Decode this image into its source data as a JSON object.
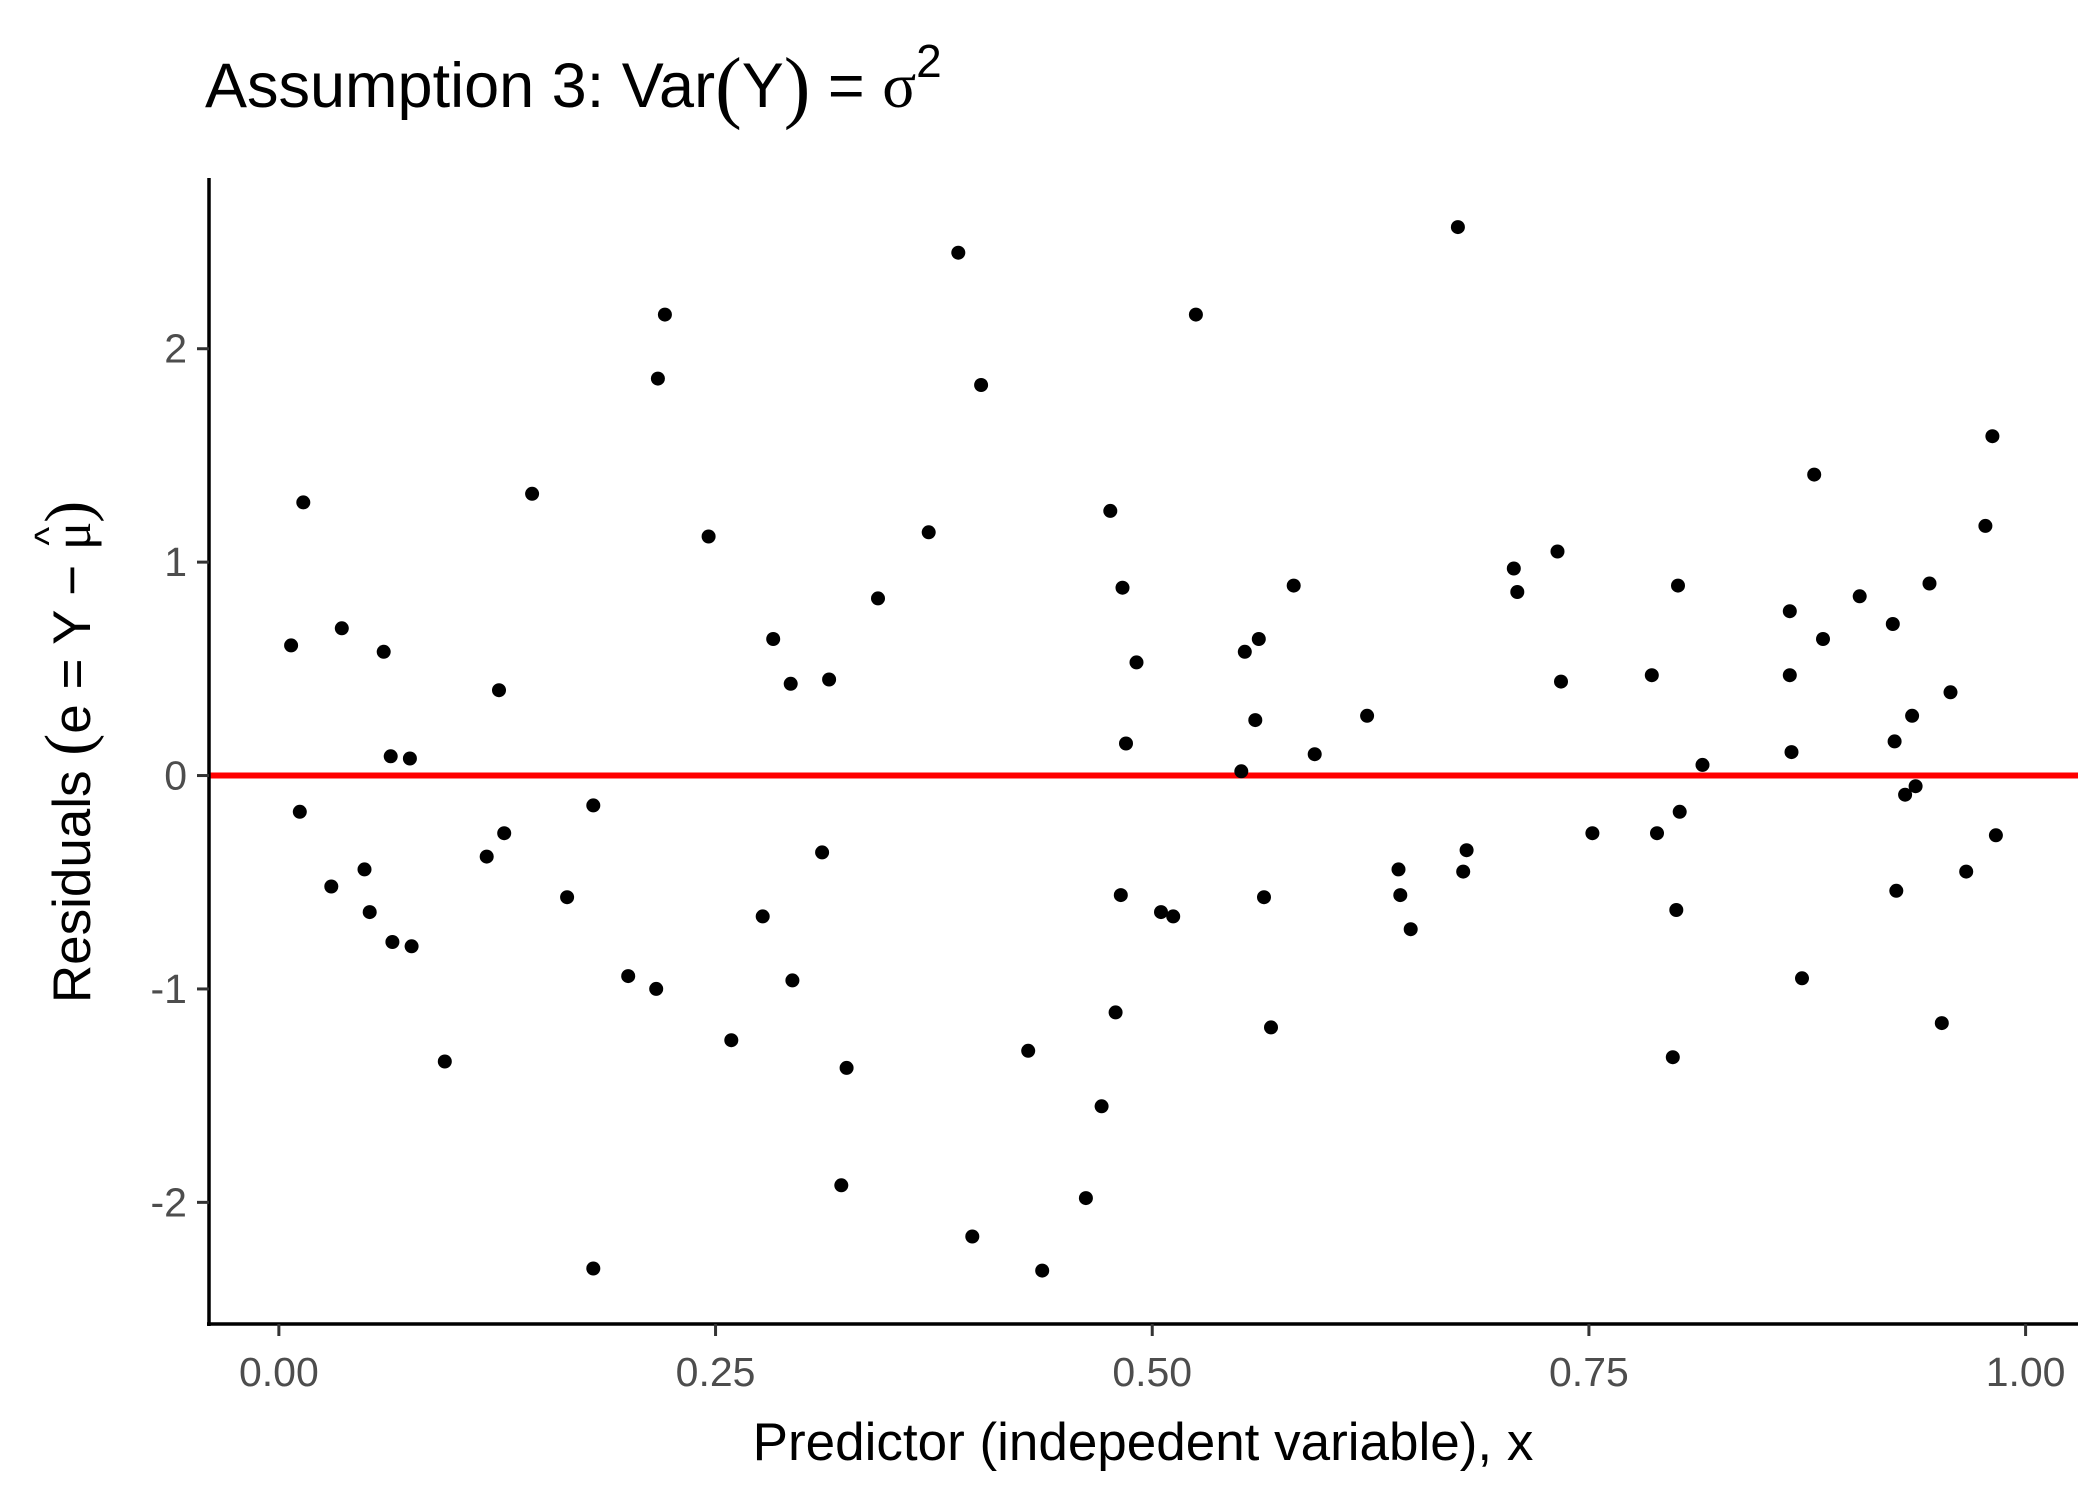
{
  "chart_data": {
    "type": "scatter",
    "title": "Assumption 3: Var(Y) = σ²",
    "title_parts": {
      "before": "Assumption 3: Var",
      "open": "(",
      "var": "Y",
      "close": ")",
      "eq": " = ",
      "sigma": "σ",
      "sup": "2"
    },
    "xlabel": "Predictor (indepedent variable), x",
    "ylabel": "Residuals (e = Y − μ̂)",
    "ylabel_parts": {
      "before": "Residuals ",
      "open": "(",
      "mid": "e = Y − ",
      "mu": "μ",
      "hat": "^",
      "close": ")"
    },
    "xlim": [
      -0.04,
      1.03
    ],
    "ylim": [
      -2.57,
      2.8
    ],
    "xticks": [
      0.0,
      0.25,
      0.5,
      0.75,
      1.0
    ],
    "xtick_labels": [
      "0.00",
      "0.25",
      "0.50",
      "0.75",
      "1.00"
    ],
    "yticks": [
      -2,
      -1,
      0,
      1,
      2
    ],
    "ytick_labels": [
      "-2",
      "-1",
      "0",
      "1",
      "2"
    ],
    "grid": false,
    "point_color": "#000000",
    "reference_line": {
      "y": 0,
      "color": "#ff0000"
    },
    "x": [
      0.007,
      0.012,
      0.014,
      0.03,
      0.036,
      0.049,
      0.052,
      0.06,
      0.064,
      0.065,
      0.075,
      0.076,
      0.095,
      0.119,
      0.126,
      0.129,
      0.145,
      0.165,
      0.18,
      0.18,
      0.2,
      0.216,
      0.217,
      0.221,
      0.246,
      0.259,
      0.277,
      0.283,
      0.293,
      0.294,
      0.311,
      0.315,
      0.322,
      0.325,
      0.343,
      0.372,
      0.389,
      0.397,
      0.402,
      0.429,
      0.437,
      0.462,
      0.471,
      0.476,
      0.479,
      0.482,
      0.483,
      0.485,
      0.491,
      0.505,
      0.512,
      0.525,
      0.551,
      0.553,
      0.559,
      0.561,
      0.564,
      0.568,
      0.581,
      0.593,
      0.623,
      0.641,
      0.642,
      0.648,
      0.675,
      0.678,
      0.68,
      0.707,
      0.709,
      0.732,
      0.734,
      0.752,
      0.786,
      0.789,
      0.798,
      0.8,
      0.801,
      0.802,
      0.815,
      0.865,
      0.865,
      0.866,
      0.872,
      0.879,
      0.884,
      0.905,
      0.924,
      0.925,
      0.926,
      0.931,
      0.935,
      0.937,
      0.945,
      0.952,
      0.957,
      0.966,
      0.977,
      0.981,
      0.983
    ],
    "y": [
      0.61,
      -0.17,
      1.28,
      -0.52,
      0.69,
      -0.44,
      -0.64,
      0.58,
      0.09,
      -0.78,
      0.08,
      -0.8,
      -1.34,
      -0.38,
      0.4,
      -0.27,
      1.32,
      -0.57,
      -2.31,
      -0.14,
      -0.94,
      -1.0,
      1.86,
      2.16,
      1.12,
      -1.24,
      -0.66,
      0.64,
      0.43,
      -0.96,
      -0.36,
      0.45,
      -1.92,
      -1.37,
      0.83,
      1.14,
      2.45,
      -2.16,
      1.83,
      -1.29,
      -2.32,
      -1.98,
      -1.55,
      1.24,
      -1.11,
      -0.56,
      0.88,
      0.15,
      0.53,
      -0.64,
      -0.66,
      2.16,
      0.02,
      0.58,
      0.26,
      0.64,
      -0.57,
      -1.18,
      0.89,
      0.1,
      0.28,
      -0.44,
      -0.56,
      -0.72,
      2.57,
      -0.45,
      -0.35,
      0.97,
      0.86,
      1.05,
      0.44,
      -0.27,
      0.47,
      -0.27,
      -1.32,
      -0.63,
      0.89,
      -0.17,
      0.05,
      0.77,
      0.47,
      0.11,
      -0.95,
      1.41,
      0.64,
      0.84,
      0.71,
      0.16,
      -0.54,
      -0.09,
      0.28,
      -0.05,
      0.9,
      -1.16,
      0.39,
      -0.45,
      1.17,
      1.59,
      -0.28
    ]
  }
}
